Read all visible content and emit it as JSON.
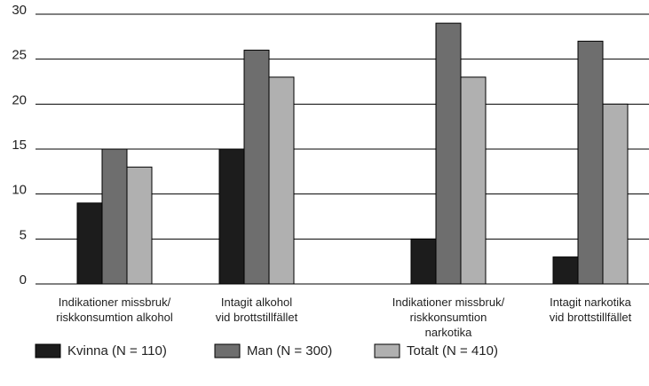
{
  "chart_data": {
    "type": "bar",
    "categories": [
      "Indikationer missbruk/\nriskkonsumtion alkohol",
      "Intagit alkohol\nvid brottstillfället",
      "Indikationer missbruk/\nriskkonsumtion\nnarkotika",
      "Intagit narkotika\nvid brottstillfället"
    ],
    "series": [
      {
        "name": "Kvinna (N = 110)",
        "color": "#1c1c1c",
        "values": [
          9,
          15,
          5,
          3
        ]
      },
      {
        "name": "Man (N = 300)",
        "color": "#6e6e6e",
        "values": [
          15,
          26,
          29,
          27
        ]
      },
      {
        "name": "Totalt (N = 410)",
        "color": "#b0b0b0",
        "values": [
          13,
          23,
          23,
          20
        ]
      }
    ],
    "ylim": [
      0,
      30
    ],
    "yticks": [
      0,
      5,
      10,
      15,
      20,
      25,
      30
    ],
    "grid": true,
    "legend": "bottom"
  }
}
